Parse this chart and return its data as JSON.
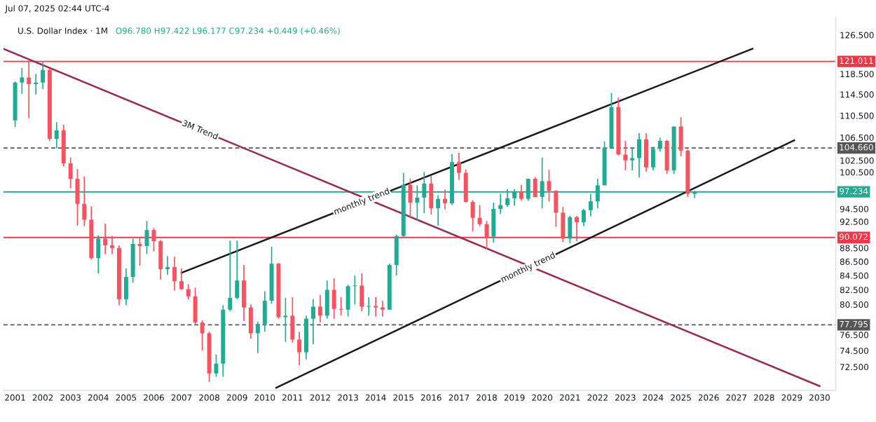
{
  "chart_data": {
    "type": "candlestick",
    "title": "U.S. Dollar Index · 1M",
    "subtitle": "Jul 07, 2025 02:44 UTC-4",
    "annotations": [
      "O96.780 H97.422 L96.177 C97.234 +0.449 (+0.46%)",
      {
        "text": "3M Trend",
        "x": "2007-09",
        "y": 107.8
      },
      {
        "text": "monthly trend",
        "x": "2013-07",
        "y": 95.6
      },
      {
        "text": "monthly trend",
        "x": "2019-07",
        "y": 85.6
      }
    ],
    "x": [
      "2001-01",
      "2001-04",
      "2001-07",
      "2001-10",
      "2002-01",
      "2002-04",
      "2002-07",
      "2002-10",
      "2003-01",
      "2003-04",
      "2003-07",
      "2003-10",
      "2004-01",
      "2004-04",
      "2004-07",
      "2004-10",
      "2005-01",
      "2005-04",
      "2005-07",
      "2005-10",
      "2006-01",
      "2006-04",
      "2006-07",
      "2006-10",
      "2007-01",
      "2007-04",
      "2007-07",
      "2007-10",
      "2008-01",
      "2008-04",
      "2008-07",
      "2008-10",
      "2009-01",
      "2009-04",
      "2009-07",
      "2009-10",
      "2010-01",
      "2010-04",
      "2010-07",
      "2010-10",
      "2011-01",
      "2011-04",
      "2011-07",
      "2011-10",
      "2012-01",
      "2012-04",
      "2012-07",
      "2012-10",
      "2013-01",
      "2013-04",
      "2013-07",
      "2013-10",
      "2014-01",
      "2014-04",
      "2014-07",
      "2014-10",
      "2015-01",
      "2015-04",
      "2015-07",
      "2015-10",
      "2016-01",
      "2016-04",
      "2016-07",
      "2016-10",
      "2017-01",
      "2017-04",
      "2017-07",
      "2017-10",
      "2018-01",
      "2018-04",
      "2018-07",
      "2018-10",
      "2019-01",
      "2019-04",
      "2019-07",
      "2019-10",
      "2020-01",
      "2020-04",
      "2020-07",
      "2020-10",
      "2021-01",
      "2021-04",
      "2021-07",
      "2021-10",
      "2022-01",
      "2022-04",
      "2022-07",
      "2022-10",
      "2023-01",
      "2023-04",
      "2023-07",
      "2023-10",
      "2024-01",
      "2024-04",
      "2024-07",
      "2024-10",
      "2025-01",
      "2025-04",
      "2025-07"
    ],
    "ohlc": [
      [
        109.6,
        117.0,
        108.4,
        116.8
      ],
      [
        116.8,
        119.7,
        114.6,
        117.8
      ],
      [
        117.8,
        121.0,
        110.0,
        116.5
      ],
      [
        116.5,
        118.5,
        114.5,
        116.8
      ],
      [
        116.8,
        120.9,
        115.5,
        119.3
      ],
      [
        119.3,
        119.6,
        105.9,
        106.3
      ],
      [
        106.3,
        109.3,
        104.6,
        107.8
      ],
      [
        107.8,
        108.8,
        101.5,
        102.0
      ],
      [
        102.0,
        103.0,
        97.8,
        99.4
      ],
      [
        99.4,
        101.0,
        91.9,
        95.3
      ],
      [
        95.3,
        99.8,
        91.8,
        92.8
      ],
      [
        92.8,
        94.9,
        86.8,
        87.0
      ],
      [
        87.0,
        90.4,
        84.8,
        89.9
      ],
      [
        89.9,
        92.2,
        87.6,
        88.9
      ],
      [
        88.9,
        90.3,
        87.6,
        88.5
      ],
      [
        88.5,
        88.9,
        80.4,
        81.2
      ],
      [
        81.2,
        85.5,
        80.4,
        84.3
      ],
      [
        84.3,
        89.9,
        83.5,
        89.1
      ],
      [
        89.1,
        90.2,
        85.9,
        88.8
      ],
      [
        88.8,
        92.6,
        87.6,
        91.2
      ],
      [
        91.2,
        91.5,
        88.0,
        89.5
      ],
      [
        89.5,
        89.7,
        83.9,
        85.4
      ],
      [
        85.4,
        87.3,
        84.6,
        85.7
      ],
      [
        85.7,
        87.2,
        82.4,
        83.7
      ],
      [
        83.7,
        85.5,
        82.5,
        82.6
      ],
      [
        82.6,
        83.3,
        81.2,
        81.6
      ],
      [
        81.6,
        82.8,
        77.9,
        78.1
      ],
      [
        78.1,
        78.4,
        74.5,
        76.7
      ],
      [
        76.7,
        76.9,
        70.7,
        71.7
      ],
      [
        71.7,
        74.0,
        71.3,
        72.9
      ],
      [
        72.9,
        80.4,
        71.3,
        79.8
      ],
      [
        79.8,
        89.6,
        79.6,
        81.4
      ],
      [
        81.4,
        89.6,
        81.2,
        83.8
      ],
      [
        83.8,
        86.0,
        78.3,
        80.1
      ],
      [
        80.1,
        80.5,
        76.0,
        76.7
      ],
      [
        76.7,
        78.2,
        74.2,
        77.9
      ],
      [
        77.9,
        82.3,
        76.9,
        81.0
      ],
      [
        81.0,
        88.7,
        80.6,
        86.2
      ],
      [
        86.2,
        86.3,
        78.6,
        78.8
      ],
      [
        78.8,
        81.4,
        75.6,
        79.0
      ],
      [
        79.0,
        81.5,
        75.5,
        75.9
      ],
      [
        75.9,
        76.9,
        72.7,
        74.3
      ],
      [
        74.3,
        79.0,
        73.4,
        78.6
      ],
      [
        78.6,
        81.2,
        75.3,
        80.2
      ],
      [
        80.2,
        81.8,
        78.1,
        79.0
      ],
      [
        79.0,
        83.8,
        78.6,
        82.5
      ],
      [
        82.5,
        84.1,
        78.6,
        79.9
      ],
      [
        79.9,
        81.5,
        79.0,
        79.8
      ],
      [
        79.8,
        83.2,
        78.9,
        83.0
      ],
      [
        83.0,
        84.5,
        80.5,
        83.1
      ],
      [
        83.1,
        84.8,
        79.6,
        80.2
      ],
      [
        80.2,
        81.5,
        79.0,
        80.3
      ],
      [
        80.3,
        81.5,
        78.9,
        80.1
      ],
      [
        80.1,
        81.0,
        78.9,
        79.8
      ],
      [
        79.8,
        86.2,
        79.8,
        86.0
      ],
      [
        86.0,
        90.5,
        84.5,
        90.3
      ],
      [
        90.3,
        100.4,
        90.1,
        98.4
      ],
      [
        98.4,
        99.4,
        93.1,
        95.5
      ],
      [
        95.5,
        98.3,
        92.6,
        96.3
      ],
      [
        96.3,
        100.5,
        93.8,
        98.6
      ],
      [
        98.6,
        99.9,
        93.6,
        94.6
      ],
      [
        94.6,
        96.7,
        91.9,
        96.1
      ],
      [
        96.1,
        97.6,
        94.4,
        95.4
      ],
      [
        95.4,
        103.6,
        95.1,
        102.2
      ],
      [
        102.2,
        103.8,
        99.2,
        100.4
      ],
      [
        100.4,
        101.0,
        95.5,
        95.6
      ],
      [
        95.6,
        95.9,
        91.0,
        93.1
      ],
      [
        93.1,
        95.1,
        91.8,
        92.1
      ],
      [
        92.1,
        92.6,
        88.3,
        90.2
      ],
      [
        90.2,
        95.5,
        89.3,
        94.5
      ],
      [
        94.5,
        96.9,
        93.7,
        95.1
      ],
      [
        95.1,
        97.7,
        94.8,
        96.2
      ],
      [
        96.2,
        97.7,
        95.0,
        97.3
      ],
      [
        97.3,
        98.4,
        95.8,
        96.1
      ],
      [
        96.1,
        99.4,
        95.8,
        99.4
      ],
      [
        99.4,
        99.7,
        96.4,
        96.4
      ],
      [
        96.4,
        103.0,
        94.6,
        99.0
      ],
      [
        99.0,
        100.9,
        95.7,
        97.4
      ],
      [
        97.4,
        97.5,
        91.7,
        93.9
      ],
      [
        93.9,
        94.8,
        89.4,
        89.9
      ],
      [
        89.9,
        93.4,
        89.2,
        93.2
      ],
      [
        93.2,
        93.4,
        89.5,
        92.4
      ],
      [
        92.4,
        94.5,
        91.8,
        94.3
      ],
      [
        94.3,
        96.9,
        93.3,
        95.7
      ],
      [
        95.7,
        99.4,
        94.6,
        98.3
      ],
      [
        98.3,
        105.8,
        98.3,
        104.7
      ],
      [
        104.7,
        114.8,
        104.7,
        112.1
      ],
      [
        112.1,
        113.9,
        103.4,
        103.5
      ],
      [
        103.5,
        105.9,
        100.8,
        102.5
      ],
      [
        102.5,
        104.7,
        100.8,
        102.9
      ],
      [
        102.9,
        107.3,
        99.6,
        106.2
      ],
      [
        106.2,
        107.3,
        100.6,
        101.3
      ],
      [
        101.3,
        104.9,
        100.8,
        104.5
      ],
      [
        104.5,
        106.5,
        104.0,
        105.9
      ],
      [
        105.9,
        106.1,
        100.2,
        100.8
      ],
      [
        100.8,
        108.5,
        100.2,
        108.5
      ],
      [
        108.5,
        110.2,
        103.2,
        104.2
      ],
      [
        104.2,
        104.4,
        96.4,
        96.9
      ],
      [
        96.9,
        97.4,
        96.2,
        97.2
      ]
    ],
    "colors": [
      "#22ab94",
      "#22ab94",
      "#f7525f",
      "#22ab94",
      "#22ab94",
      "#f7525f",
      "#22ab94",
      "#f7525f",
      "#f7525f",
      "#f7525f",
      "#f7525f",
      "#f7525f",
      "#22ab94",
      "#f7525f",
      "#f7525f",
      "#f7525f",
      "#22ab94",
      "#22ab94",
      "#f7525f",
      "#22ab94",
      "#f7525f",
      "#f7525f",
      "#22ab94",
      "#f7525f",
      "#f7525f",
      "#f7525f",
      "#f7525f",
      "#f7525f",
      "#f7525f",
      "#22ab94",
      "#22ab94",
      "#22ab94",
      "#22ab94",
      "#f7525f",
      "#f7525f",
      "#22ab94",
      "#22ab94",
      "#22ab94",
      "#f7525f",
      "#22ab94",
      "#f7525f",
      "#f7525f",
      "#22ab94",
      "#22ab94",
      "#f7525f",
      "#22ab94",
      "#f7525f",
      "#f7525f",
      "#22ab94",
      "#22ab94",
      "#f7525f",
      "#22ab94",
      "#f7525f",
      "#f7525f",
      "#22ab94",
      "#22ab94",
      "#22ab94",
      "#f7525f",
      "#22ab94",
      "#22ab94",
      "#f7525f",
      "#22ab94",
      "#f7525f",
      "#22ab94",
      "#f7525f",
      "#f7525f",
      "#f7525f",
      "#f7525f",
      "#f7525f",
      "#22ab94",
      "#22ab94",
      "#22ab94",
      "#22ab94",
      "#f7525f",
      "#22ab94",
      "#f7525f",
      "#22ab94",
      "#f7525f",
      "#f7525f",
      "#f7525f",
      "#22ab94",
      "#f7525f",
      "#22ab94",
      "#22ab94",
      "#22ab94",
      "#22ab94",
      "#22ab94",
      "#f7525f",
      "#f7525f",
      "#22ab94",
      "#22ab94",
      "#f7525f",
      "#22ab94",
      "#22ab94",
      "#f7525f",
      "#22ab94",
      "#f7525f",
      "#f7525f",
      "#22ab94"
    ],
    "series": [
      {
        "type": "line",
        "color": "#9c2a4a",
        "x": [
          "2000-08",
          "2030-01"
        ],
        "values": [
          123.6,
          70.2
        ]
      },
      {
        "type": "line",
        "color": "#1a1a1a",
        "x": [
          "2007-01",
          "2027-08"
        ],
        "values": [
          84.9,
          123.6
        ]
      },
      {
        "type": "line",
        "color": "#1a1a1a",
        "x": [
          "2010-06",
          "2029-02"
        ],
        "values": [
          70.0,
          106.0
        ]
      }
    ],
    "ref_lines": [
      {
        "axis": "y",
        "value": 121.011,
        "label": "121.011",
        "color": "#f23645",
        "line_style": "solid"
      },
      {
        "axis": "y",
        "value": 104.66,
        "label": "104.660",
        "color": "#555555",
        "line_style": "dashed"
      },
      {
        "axis": "y",
        "value": 97.234,
        "label": "97.234",
        "color": "#22ab94",
        "line_style": "solid"
      },
      {
        "axis": "y",
        "value": 90.072,
        "label": "90.072",
        "color": "#f23645",
        "line_style": "solid"
      },
      {
        "axis": "y",
        "value": 77.795,
        "label": "77.795",
        "color": "#555555",
        "line_style": "dashed"
      }
    ],
    "log": "y",
    "ylim": [
      69.7,
      130.4
    ],
    "yticks": [
      {
        "value": 72.5,
        "label": "72.500"
      },
      {
        "value": 74.5,
        "label": "74.500"
      },
      {
        "value": 76.5,
        "label": "76.500"
      },
      {
        "value": 80.5,
        "label": "80.500"
      },
      {
        "value": 82.5,
        "label": "82.500"
      },
      {
        "value": 84.5,
        "label": "84.500"
      },
      {
        "value": 86.5,
        "label": "86.500"
      },
      {
        "value": 88.5,
        "label": "88.500"
      },
      {
        "value": 92.5,
        "label": "92.500"
      },
      {
        "value": 94.5,
        "label": "94.500"
      },
      {
        "value": 100.5,
        "label": "100.500"
      },
      {
        "value": 102.5,
        "label": "102.500"
      },
      {
        "value": 106.5,
        "label": "106.500"
      },
      {
        "value": 110.5,
        "label": "110.500"
      },
      {
        "value": 114.5,
        "label": "114.500"
      },
      {
        "value": 118.5,
        "label": "118.500"
      },
      {
        "value": 126.5,
        "label": "126.500"
      }
    ],
    "xlim": [
      "2000-08",
      "2030-08"
    ],
    "xticks": [
      "2001",
      "2002",
      "2003",
      "2004",
      "2005",
      "2006",
      "2007",
      "2008",
      "2009",
      "2010",
      "2011",
      "2012",
      "2013",
      "2014",
      "2015",
      "2016",
      "2017",
      "2018",
      "2019",
      "2020",
      "2021",
      "2022",
      "2023",
      "2024",
      "2025",
      "2026",
      "2027",
      "2028",
      "2029",
      "2030"
    ],
    "grid": false
  }
}
